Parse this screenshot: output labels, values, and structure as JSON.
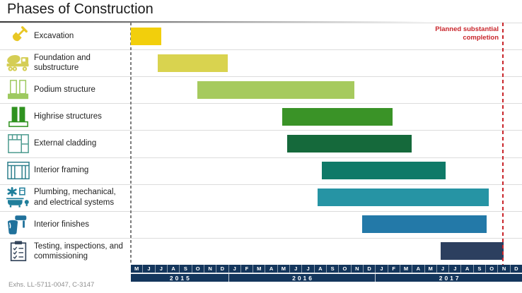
{
  "title": "Phases of Construction",
  "footer": "Exhs. LL-5711-0047, C-3147",
  "annotation": {
    "line1": "Planned substantial",
    "line2": "completion",
    "month_offset": 30.45
  },
  "colors": {
    "axis_band": "#14365C",
    "axis_text": "#FFFFFF",
    "planned_completion_line": "#C9252B",
    "start_dash_line": "#7D7D7D",
    "row_separator": "#DCDCDC",
    "title_text": "#1A1A1A",
    "footer_text": "#8F8F8F"
  },
  "chart_data": {
    "type": "bar",
    "subtype": "gantt",
    "title": "Phases of Construction",
    "time_axis": {
      "start": "May 2015",
      "end": "Dec 2017",
      "total_months": 32,
      "month_letters": [
        "M",
        "J",
        "J",
        "A",
        "S",
        "O",
        "N",
        "D",
        "J",
        "F",
        "M",
        "A",
        "M",
        "J",
        "J",
        "A",
        "S",
        "O",
        "N",
        "D",
        "J",
        "F",
        "M",
        "A",
        "M",
        "J",
        "J",
        "A",
        "S",
        "O",
        "N",
        "D"
      ],
      "years": [
        {
          "label": "2015",
          "months": 8
        },
        {
          "label": "2016",
          "months": 12
        },
        {
          "label": "2017",
          "months": 12
        }
      ]
    },
    "phases": [
      {
        "label": "Excavation",
        "icon": "shovel-icon",
        "icon_color": "#E8C724",
        "color": "#F2CF0C",
        "start_month_offset": 0,
        "end_month_offset": 2.5,
        "approx_start": "May 2015",
        "approx_end": "mid-Jul 2015"
      },
      {
        "label": "Foundation and substructure",
        "icon": "cement-mixer-icon",
        "icon_color": "#D5CE55",
        "color": "#D9D34F",
        "start_month_offset": 2.2,
        "end_month_offset": 7.9,
        "approx_start": "Jul 2015",
        "approx_end": "Dec 2015"
      },
      {
        "label": "Podium structure",
        "icon": "podium-icon",
        "icon_color": "#9DC95F",
        "color": "#A6CA5E",
        "start_month_offset": 5.45,
        "end_month_offset": 18.3,
        "approx_start": "mid-Oct 2015",
        "approx_end": "early Nov 2016"
      },
      {
        "label": "Highrise structures",
        "icon": "highrise-icon",
        "icon_color": "#2F921F",
        "color": "#3A9327",
        "start_month_offset": 12.4,
        "end_month_offset": 21.4,
        "approx_start": "mid-May 2016",
        "approx_end": "mid-Feb 2017"
      },
      {
        "label": "External cladding",
        "icon": "cladding-icon",
        "icon_color": "#4D9B8F",
        "color": "#15693B",
        "start_month_offset": 12.8,
        "end_month_offset": 23.0,
        "approx_start": "late May 2016",
        "approx_end": "Apr 2017"
      },
      {
        "label": "Interior framing",
        "icon": "framing-icon",
        "icon_color": "#2F808D",
        "color": "#0F7A68",
        "start_month_offset": 15.65,
        "end_month_offset": 25.75,
        "approx_start": "mid-Aug 2016",
        "approx_end": "late Jun 2017"
      },
      {
        "label": "Plumbing, mechanical, and electrical systems",
        "icon": "plumbing-icon",
        "icon_color": "#1F7E9B",
        "color": "#2694A4",
        "start_month_offset": 15.3,
        "end_month_offset": 29.3,
        "approx_start": "Aug 2016",
        "approx_end": "mid-Oct 2017"
      },
      {
        "label": "Interior finishes",
        "icon": "paint-roller-icon",
        "icon_color": "#20719B",
        "color": "#2379A8",
        "start_month_offset": 18.9,
        "end_month_offset": 29.1,
        "approx_start": "late Nov 2016",
        "approx_end": "Oct 2017"
      },
      {
        "label": "Testing, inspections, and commissioning",
        "icon": "clipboard-icon",
        "icon_color": "#35465C",
        "color": "#2C3F5F",
        "start_month_offset": 25.35,
        "end_month_offset": 30.5,
        "approx_start": "Jun 2017",
        "approx_end": "mid-Nov 2017"
      }
    ]
  }
}
